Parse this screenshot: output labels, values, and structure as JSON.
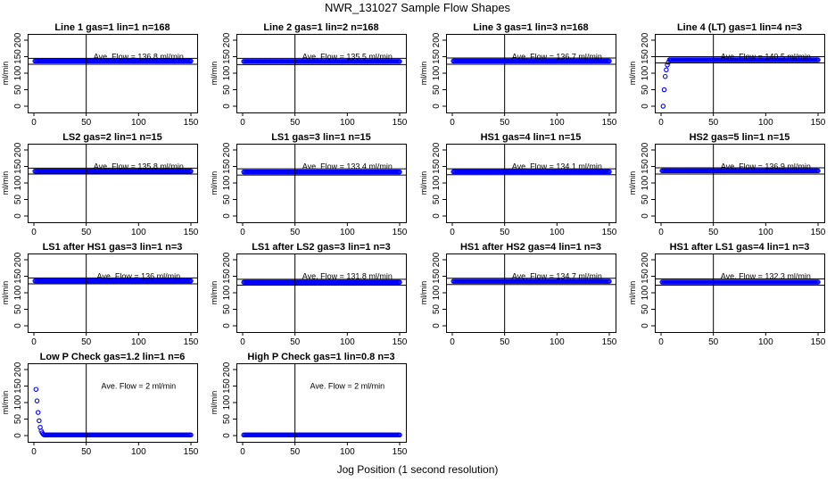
{
  "title": "NWR_131027  Sample Flow Shapes",
  "xlabel": "Jog Position (1 second resolution)",
  "chart_data": [
    {
      "type": "scatter",
      "title": "Line 1 gas=1 lin=1 n=168",
      "ylabel": "ml/min",
      "annotation": "Ave. Flow = 136.8  ml/min",
      "xlim": [
        0,
        150
      ],
      "ylim": [
        0,
        200
      ],
      "xticks": [
        0,
        50,
        100,
        150
      ],
      "yticks": [
        0,
        50,
        100,
        150,
        200
      ],
      "vline_x": 50,
      "hline_y": [
        127,
        145
      ],
      "points": {
        "x": {
          "from": 1,
          "to": 150,
          "step": 1
        },
        "y_const": 136.8
      }
    },
    {
      "type": "scatter",
      "title": "Line 2 gas=1 lin=2 n=168",
      "ylabel": "ml/min",
      "annotation": "Ave. Flow = 135.5  ml/min",
      "xlim": [
        0,
        150
      ],
      "ylim": [
        0,
        200
      ],
      "xticks": [
        0,
        50,
        100,
        150
      ],
      "yticks": [
        0,
        50,
        100,
        150,
        200
      ],
      "vline_x": 50,
      "hline_y": [
        126,
        145
      ],
      "points": {
        "x": {
          "from": 1,
          "to": 150,
          "step": 1
        },
        "y_const": 135.5
      }
    },
    {
      "type": "scatter",
      "title": "Line 3 gas=1 lin=3 n=168",
      "ylabel": "ml/min",
      "annotation": "Ave. Flow = 136.7  ml/min",
      "xlim": [
        0,
        150
      ],
      "ylim": [
        0,
        200
      ],
      "xticks": [
        0,
        50,
        100,
        150
      ],
      "yticks": [
        0,
        50,
        100,
        150,
        200
      ],
      "vline_x": 50,
      "hline_y": [
        127,
        146
      ],
      "points": {
        "x": {
          "from": 1,
          "to": 150,
          "step": 1
        },
        "y_const": 136.7
      }
    },
    {
      "type": "scatter",
      "title": "Line 4 (LT) gas=1 lin=4 n=3",
      "ylabel": "ml/min",
      "annotation": "Ave. Flow = 140.5  ml/min",
      "xlim": [
        0,
        150
      ],
      "ylim": [
        0,
        200
      ],
      "xticks": [
        0,
        50,
        100,
        150
      ],
      "yticks": [
        0,
        50,
        100,
        150,
        200
      ],
      "vline_x": 50,
      "hline_y": [
        131,
        150
      ],
      "points": {
        "x": {
          "from": 8,
          "to": 150,
          "step": 1
        },
        "y_const": 140.5,
        "lead_in": [
          [
            2,
            0
          ],
          [
            3,
            50
          ],
          [
            4,
            90
          ],
          [
            5,
            110
          ],
          [
            6,
            125
          ],
          [
            7,
            133
          ]
        ]
      }
    },
    {
      "type": "scatter",
      "title": "LS2 gas=2 lin=1 n=15",
      "ylabel": "ml/min",
      "annotation": "Ave. Flow = 135.8  ml/min",
      "xlim": [
        0,
        150
      ],
      "ylim": [
        0,
        200
      ],
      "xticks": [
        0,
        50,
        100,
        150
      ],
      "yticks": [
        0,
        50,
        100,
        150,
        200
      ],
      "vline_x": 50,
      "hline_y": [
        127,
        145
      ],
      "points": {
        "x": {
          "from": 1,
          "to": 150,
          "step": 1
        },
        "y_const": 135.8
      }
    },
    {
      "type": "scatter",
      "title": "LS1 gas=3 lin=1 n=15",
      "ylabel": "ml/min",
      "annotation": "Ave. Flow = 133.4  ml/min",
      "xlim": [
        0,
        150
      ],
      "ylim": [
        0,
        200
      ],
      "xticks": [
        0,
        50,
        100,
        150
      ],
      "yticks": [
        0,
        50,
        100,
        150,
        200
      ],
      "vline_x": 50,
      "hline_y": [
        124,
        143
      ],
      "points": {
        "x": {
          "from": 1,
          "to": 150,
          "step": 1
        },
        "y_const": 133.4
      }
    },
    {
      "type": "scatter",
      "title": "HS1 gas=4 lin=1 n=15",
      "ylabel": "ml/min",
      "annotation": "Ave. Flow = 134.1  ml/min",
      "xlim": [
        0,
        150
      ],
      "ylim": [
        0,
        200
      ],
      "xticks": [
        0,
        50,
        100,
        150
      ],
      "yticks": [
        0,
        50,
        100,
        150,
        200
      ],
      "vline_x": 50,
      "hline_y": [
        125,
        143
      ],
      "points": {
        "x": {
          "from": 1,
          "to": 150,
          "step": 1
        },
        "y_const": 134.1
      }
    },
    {
      "type": "scatter",
      "title": "HS2 gas=5 lin=1 n=15",
      "ylabel": "ml/min",
      "annotation": "Ave. Flow = 136.9  ml/min",
      "xlim": [
        0,
        150
      ],
      "ylim": [
        0,
        200
      ],
      "xticks": [
        0,
        50,
        100,
        150
      ],
      "yticks": [
        0,
        50,
        100,
        150,
        200
      ],
      "vline_x": 50,
      "hline_y": [
        127,
        146
      ],
      "points": {
        "x": {
          "from": 1,
          "to": 150,
          "step": 1
        },
        "y_const": 136.9
      }
    },
    {
      "type": "scatter",
      "title": "LS1 after HS1 gas=3 lin=1 n=3",
      "ylabel": "ml/min",
      "annotation": "Ave. Flow = 136  ml/min",
      "xlim": [
        0,
        150
      ],
      "ylim": [
        0,
        200
      ],
      "xticks": [
        0,
        50,
        100,
        150
      ],
      "yticks": [
        0,
        50,
        100,
        150,
        200
      ],
      "vline_x": 50,
      "hline_y": [
        127,
        145
      ],
      "points": {
        "x": {
          "from": 1,
          "to": 150,
          "step": 1
        },
        "y_const": 136
      }
    },
    {
      "type": "scatter",
      "title": "LS1 after LS2 gas=3 lin=1 n=3",
      "ylabel": "ml/min",
      "annotation": "Ave. Flow = 131.8  ml/min",
      "xlim": [
        0,
        150
      ],
      "ylim": [
        0,
        200
      ],
      "xticks": [
        0,
        50,
        100,
        150
      ],
      "yticks": [
        0,
        50,
        100,
        150,
        200
      ],
      "vline_x": 50,
      "hline_y": [
        123,
        141
      ],
      "points": {
        "x": {
          "from": 1,
          "to": 150,
          "step": 1
        },
        "y_const": 131.8
      }
    },
    {
      "type": "scatter",
      "title": "HS1 after HS2 gas=4 lin=1 n=3",
      "ylabel": "ml/min",
      "annotation": "Ave. Flow = 134.7  ml/min",
      "xlim": [
        0,
        150
      ],
      "ylim": [
        0,
        200
      ],
      "xticks": [
        0,
        50,
        100,
        150
      ],
      "yticks": [
        0,
        50,
        100,
        150,
        200
      ],
      "vline_x": 50,
      "hline_y": [
        125,
        144
      ],
      "points": {
        "x": {
          "from": 1,
          "to": 150,
          "step": 1
        },
        "y_const": 134.7
      }
    },
    {
      "type": "scatter",
      "title": "HS1 after LS1 gas=4 lin=1 n=3",
      "ylabel": "ml/min",
      "annotation": "Ave. Flow = 132.3  ml/min",
      "xlim": [
        0,
        150
      ],
      "ylim": [
        0,
        200
      ],
      "xticks": [
        0,
        50,
        100,
        150
      ],
      "yticks": [
        0,
        50,
        100,
        150,
        200
      ],
      "vline_x": 50,
      "hline_y": [
        123,
        142
      ],
      "points": {
        "x": {
          "from": 1,
          "to": 150,
          "step": 1
        },
        "y_const": 132.3
      }
    },
    {
      "type": "scatter",
      "title": "Low P Check gas=1.2 lin=1 n=6",
      "ylabel": "ml/min",
      "annotation": "Ave. Flow =  2  ml/min",
      "xlim": [
        0,
        150
      ],
      "ylim": [
        0,
        200
      ],
      "xticks": [
        0,
        50,
        100,
        150
      ],
      "yticks": [
        0,
        50,
        100,
        150,
        200
      ],
      "vline_x": 50,
      "hline_y": [],
      "points": {
        "x": {
          "from": 10,
          "to": 150,
          "step": 1
        },
        "y_const": 2,
        "lead_in": [
          [
            2,
            140
          ],
          [
            3,
            105
          ],
          [
            4,
            70
          ],
          [
            5,
            45
          ],
          [
            6,
            25
          ],
          [
            7,
            14
          ],
          [
            8,
            8
          ],
          [
            9,
            4
          ]
        ]
      }
    },
    {
      "type": "scatter",
      "title": "High P Check gas=1 lin=0.8 n=3",
      "ylabel": "ml/min",
      "annotation": "Ave. Flow =  2  ml/min",
      "xlim": [
        0,
        150
      ],
      "ylim": [
        0,
        200
      ],
      "xticks": [
        0,
        50,
        100,
        150
      ],
      "yticks": [
        0,
        50,
        100,
        150,
        200
      ],
      "vline_x": 50,
      "hline_y": [],
      "points": {
        "x": {
          "from": 1,
          "to": 150,
          "step": 1
        },
        "y_const": 2
      }
    }
  ]
}
